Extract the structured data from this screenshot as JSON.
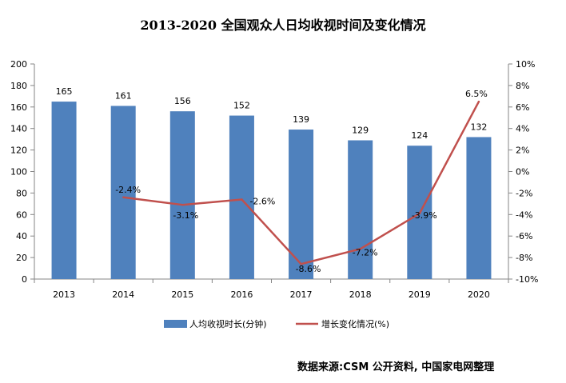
{
  "chart_data": {
    "type": "bar+line",
    "title": "2013-2020 全国观众人日均收视时间及变化情况",
    "categories": [
      "2013",
      "2014",
      "2015",
      "2016",
      "2017",
      "2018",
      "2019",
      "2020"
    ],
    "series": [
      {
        "name": "人均收视时长(分钟)",
        "type": "bar",
        "axis": "left",
        "color": "#4F81BD",
        "values": [
          165,
          161,
          156,
          152,
          139,
          129,
          124,
          132
        ],
        "labels": [
          "165",
          "161",
          "156",
          "152",
          "139",
          "129",
          "124",
          "132"
        ]
      },
      {
        "name": "增长变化情况(%)",
        "type": "line",
        "axis": "right",
        "color": "#C0504D",
        "values": [
          null,
          -2.4,
          -3.1,
          -2.6,
          -8.6,
          -7.2,
          -3.9,
          6.5
        ],
        "labels": [
          "",
          "-2.4%",
          "-3.1%",
          "-2.6%",
          "-8.6%",
          "-7.2%",
          "-3.9%",
          "6.5%"
        ]
      }
    ],
    "y_left": {
      "min": 0,
      "max": 200,
      "step": 20,
      "ticks": [
        "0",
        "20",
        "40",
        "60",
        "80",
        "100",
        "120",
        "140",
        "160",
        "180",
        "200"
      ]
    },
    "y_right": {
      "min": -10,
      "max": 10,
      "step": 2,
      "ticks": [
        "-10%",
        "-8%",
        "-6%",
        "-4%",
        "-2%",
        "0%",
        "2%",
        "4%",
        "6%",
        "8%",
        "10%"
      ]
    },
    "grid": false,
    "legend_position": "bottom"
  },
  "source": "数据来源:CSM 公开资料, 中国家电网整理"
}
